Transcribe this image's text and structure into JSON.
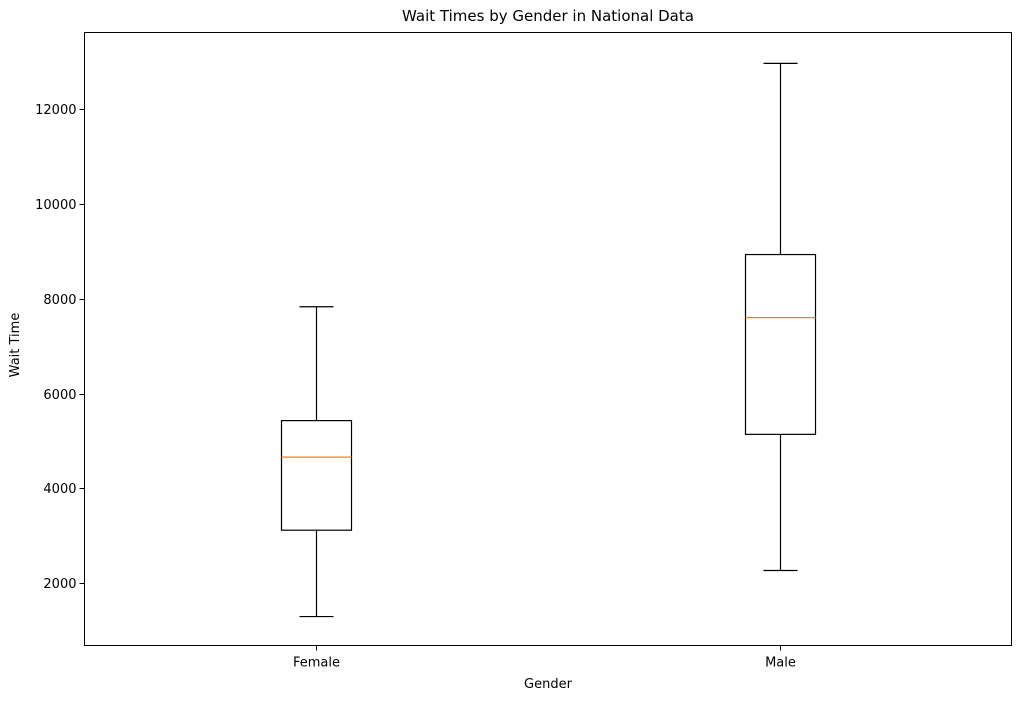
{
  "chart_data": {
    "type": "boxplot",
    "title": "Wait Times by Gender in National Data",
    "xlabel": "Gender",
    "ylabel": "Wait Time",
    "categories": [
      "Female",
      "Male"
    ],
    "boxes": [
      {
        "category": "Female",
        "whisker_low": 1300,
        "q1": 3120,
        "median": 4660,
        "q3": 5430,
        "whisker_high": 7830
      },
      {
        "category": "Male",
        "whisker_low": 2270,
        "q1": 5140,
        "median": 7600,
        "q3": 8930,
        "whisker_high": 12960
      }
    ],
    "yticks": [
      2000,
      4000,
      6000,
      8000,
      10000,
      12000
    ],
    "ylim": [
      690,
      13610
    ],
    "grid": false,
    "colors": {
      "box": "#000000",
      "median": "#ff7f0e",
      "axes": "#000000",
      "background": "#ffffff"
    }
  }
}
